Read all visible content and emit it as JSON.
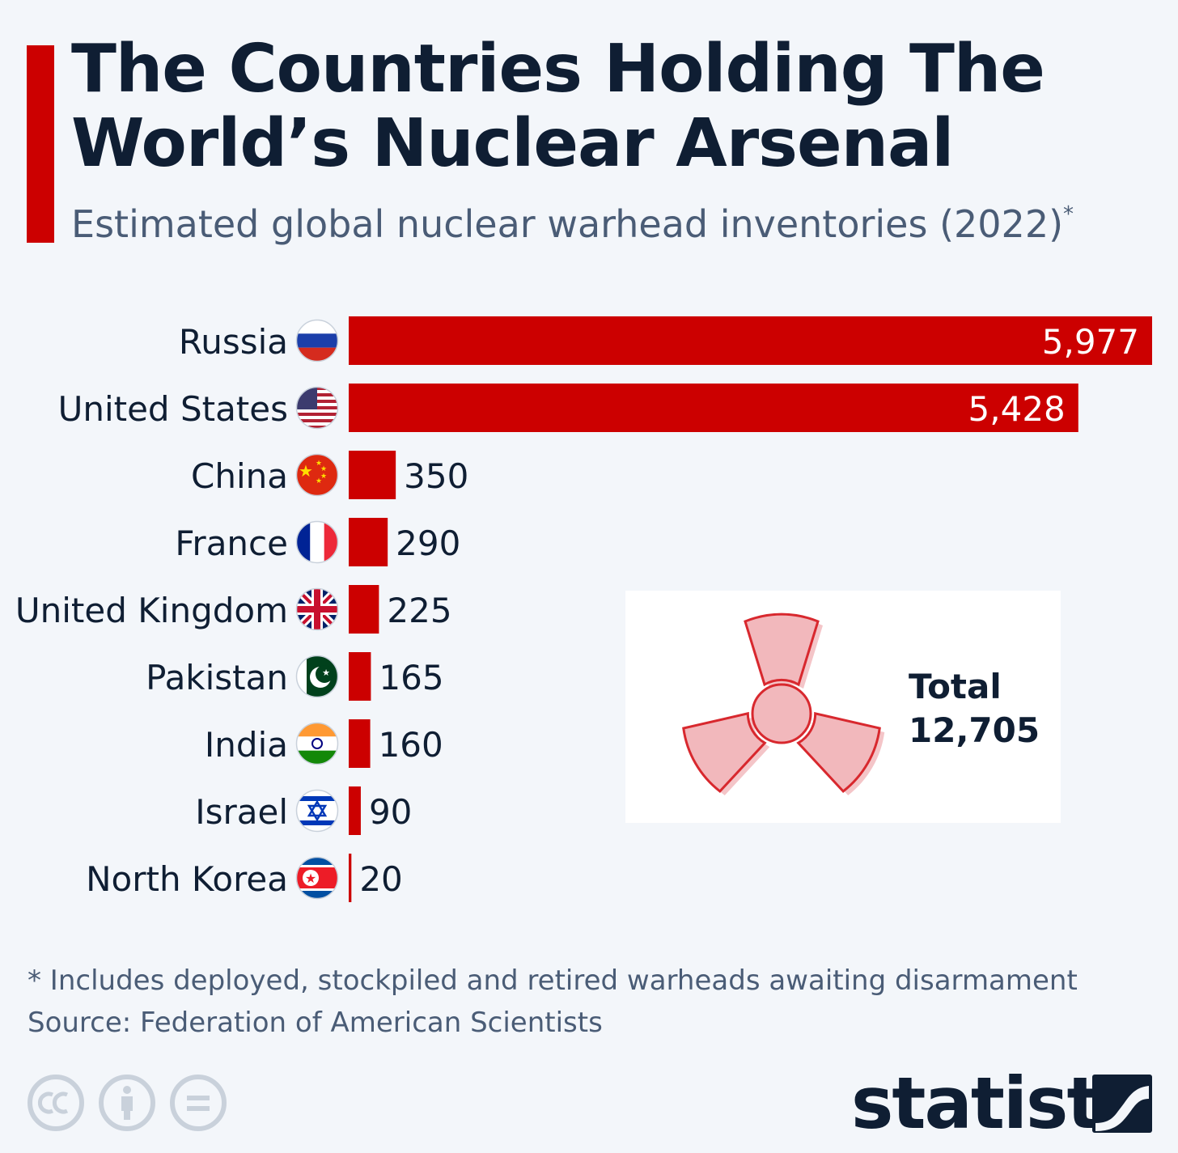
{
  "header": {
    "title": "The Countries Holding The World’s Nuclear Arsenal",
    "subtitle": "Estimated global nuclear warhead inventories (2022)",
    "subtitle_marker": "*"
  },
  "chart_data": {
    "type": "bar",
    "orientation": "horizontal",
    "categories": [
      "Russia",
      "United States",
      "China",
      "France",
      "United Kingdom",
      "Pakistan",
      "India",
      "Israel",
      "North Korea"
    ],
    "values": [
      5977,
      5428,
      350,
      290,
      225,
      165,
      160,
      90,
      20
    ],
    "value_labels": [
      "5,977",
      "5,428",
      "350",
      "290",
      "225",
      "165",
      "160",
      "90",
      "20"
    ],
    "flag_icons": [
      "russia-flag-icon",
      "usa-flag-icon",
      "china-flag-icon",
      "france-flag-icon",
      "uk-flag-icon",
      "pakistan-flag-icon",
      "india-flag-icon",
      "israel-flag-icon",
      "north-korea-flag-icon"
    ],
    "xlim": [
      0,
      5977
    ],
    "bar_color": "#cc0000",
    "grid": false
  },
  "total": {
    "label": "Total",
    "value": "12,705",
    "icon": "radiation-icon"
  },
  "footer": {
    "note": "* Includes deployed, stockpiled and retired warheads awaiting disarmament",
    "source": "Source: Federation of American Scientists",
    "license_icons": [
      "cc-icon",
      "attribution-icon",
      "no-derivatives-icon"
    ],
    "brand": "statista",
    "brand_icon": "statista-logo-icon"
  },
  "colors": {
    "accent": "#cc0000",
    "text_dark": "#0f1e33",
    "text_muted": "#4a5c76",
    "background": "#f3f6fa"
  }
}
